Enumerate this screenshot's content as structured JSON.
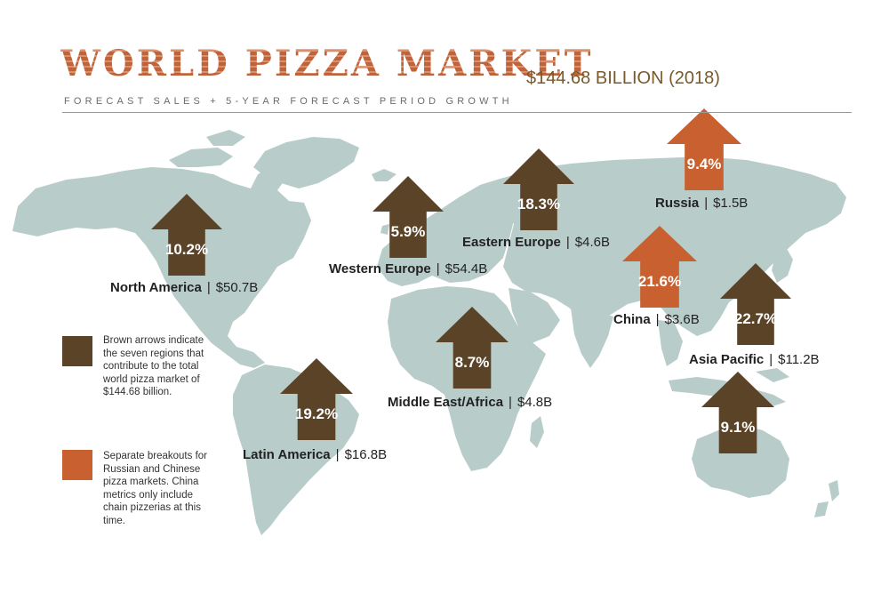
{
  "header": {
    "title": "WORLD PIZZA MARKET",
    "total": "$144.68 BILLION (2018)",
    "subtitle": "FORECAST SALES + 5-YEAR FORECAST PERIOD GROWTH"
  },
  "colors": {
    "map_land": "#b8cdc9",
    "brown_arrow": "#5a4327",
    "orange_arrow": "#c9602f",
    "title": "#c0623a"
  },
  "regions": [
    {
      "id": "north-america",
      "name": "North America",
      "value": "$50.7B",
      "growth": "10.2%",
      "arrow": "brown"
    },
    {
      "id": "western-europe",
      "name": "Western Europe",
      "value": "$54.4B",
      "growth": "5.9%",
      "arrow": "brown"
    },
    {
      "id": "eastern-europe",
      "name": "Eastern Europe",
      "value": "$4.6B",
      "growth": "18.3%",
      "arrow": "brown"
    },
    {
      "id": "russia",
      "name": "Russia",
      "value": "$1.5B",
      "growth": "9.4%",
      "arrow": "orange"
    },
    {
      "id": "china",
      "name": "China",
      "value": "$3.6B",
      "growth": "21.6%",
      "arrow": "orange"
    },
    {
      "id": "asia-pacific",
      "name": "Asia Pacific",
      "value": "$11.2B",
      "growth": "22.7%",
      "arrow": "brown"
    },
    {
      "id": "middle-east-africa",
      "name": "Middle East/Africa",
      "value": "$4.8B",
      "growth": "8.7%",
      "arrow": "brown"
    },
    {
      "id": "latin-america",
      "name": "Latin America",
      "value": "$16.8B",
      "growth": "19.2%",
      "arrow": "brown"
    },
    {
      "id": "oceania",
      "name": "",
      "value": "",
      "growth": "9.1%",
      "arrow": "brown"
    }
  ],
  "legend": {
    "brown_text": "Brown arrows indicate the seven regions that contribute to the total world pizza market of $144.68 billion.",
    "orange_text": "Separate breakouts for Russian and Chinese pizza markets. China metrics only include chain pizzerias at this time."
  }
}
